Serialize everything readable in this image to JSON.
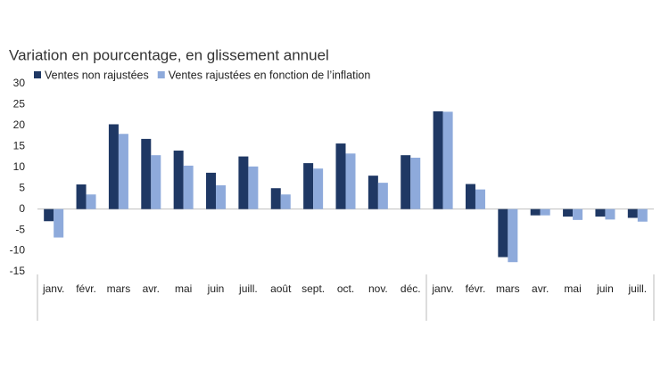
{
  "chart_data": {
    "type": "bar",
    "title": "Variation en pourcentage, en glissement annuel",
    "categories": [
      "janv.",
      "févr.",
      "mars",
      "avr.",
      "mai",
      "juin",
      "juill.",
      "août",
      "sept.",
      "oct.",
      "nov.",
      "déc.",
      "janv.",
      "févr.",
      "mars",
      "avr.",
      "mai",
      "juin",
      "juill."
    ],
    "series": [
      {
        "name": "Ventes non rajustées",
        "color": "#1f3864",
        "values": [
          -2.9,
          5.9,
          20.3,
          16.8,
          14.0,
          8.7,
          12.6,
          5.0,
          11.0,
          15.7,
          8.0,
          12.9,
          23.4,
          6.0,
          -11.5,
          -1.5,
          -1.8,
          -1.8,
          -2.1
        ]
      },
      {
        "name": "Ventes rajustées en fonction de l’inflation",
        "color": "#8eaadb",
        "values": [
          -6.8,
          3.5,
          18.0,
          12.9,
          10.4,
          5.7,
          10.2,
          3.5,
          9.7,
          13.3,
          6.3,
          12.3,
          23.3,
          4.7,
          -12.7,
          -1.5,
          -2.6,
          -2.5,
          -3.0
        ]
      }
    ],
    "ylim": [
      -15,
      30
    ],
    "yticks": [
      -15,
      -10,
      -5,
      0,
      5,
      10,
      15,
      20,
      25,
      30
    ]
  }
}
